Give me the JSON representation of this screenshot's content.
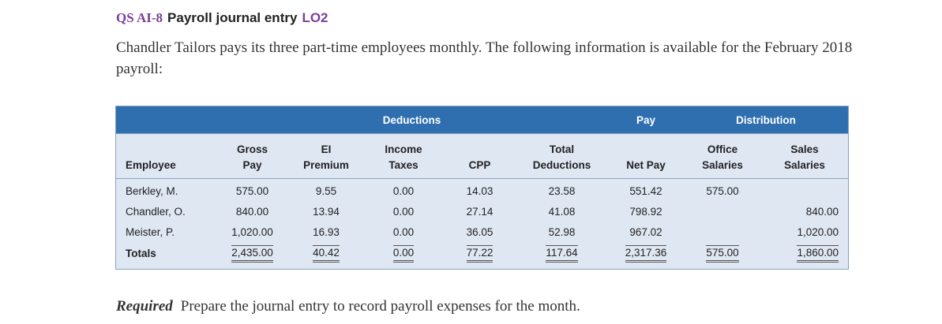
{
  "heading": {
    "code": "QS AI-8",
    "title": "Payroll journal entry",
    "lo": "LO2"
  },
  "intro": "Chandler Tailors pays its three part-time employees monthly. The following information is available for the February 2018 payroll:",
  "table": {
    "bands": {
      "deductions": "Deductions",
      "pay": "Pay",
      "distribution": "Distribution"
    },
    "columns": [
      [
        "",
        "Employee"
      ],
      [
        "Gross",
        "Pay"
      ],
      [
        "EI",
        "Premium"
      ],
      [
        "Income",
        "Taxes"
      ],
      [
        "",
        "CPP"
      ],
      [
        "Total",
        "Deductions"
      ],
      [
        "",
        "Net Pay"
      ],
      [
        "Office",
        "Salaries"
      ],
      [
        "Sales",
        "Salaries"
      ]
    ],
    "rows": [
      [
        "Berkley, M.",
        "575.00",
        "9.55",
        "0.00",
        "14.03",
        "23.58",
        "551.42",
        "575.00",
        ""
      ],
      [
        "Chandler, O.",
        "840.00",
        "13.94",
        "0.00",
        "27.14",
        "41.08",
        "798.92",
        "",
        "840.00"
      ],
      [
        "Meister, P.",
        "1,020.00",
        "16.93",
        "0.00",
        "36.05",
        "52.98",
        "967.02",
        "",
        "1,020.00"
      ]
    ],
    "totals": [
      "Totals",
      "2,435.00",
      "40.42",
      "0.00",
      "77.22",
      "117.64",
      "2,317.36",
      "575.00",
      "1,860.00"
    ]
  },
  "required": {
    "label": "Required",
    "text": "Prepare the journal entry to record payroll expenses for the month."
  }
}
